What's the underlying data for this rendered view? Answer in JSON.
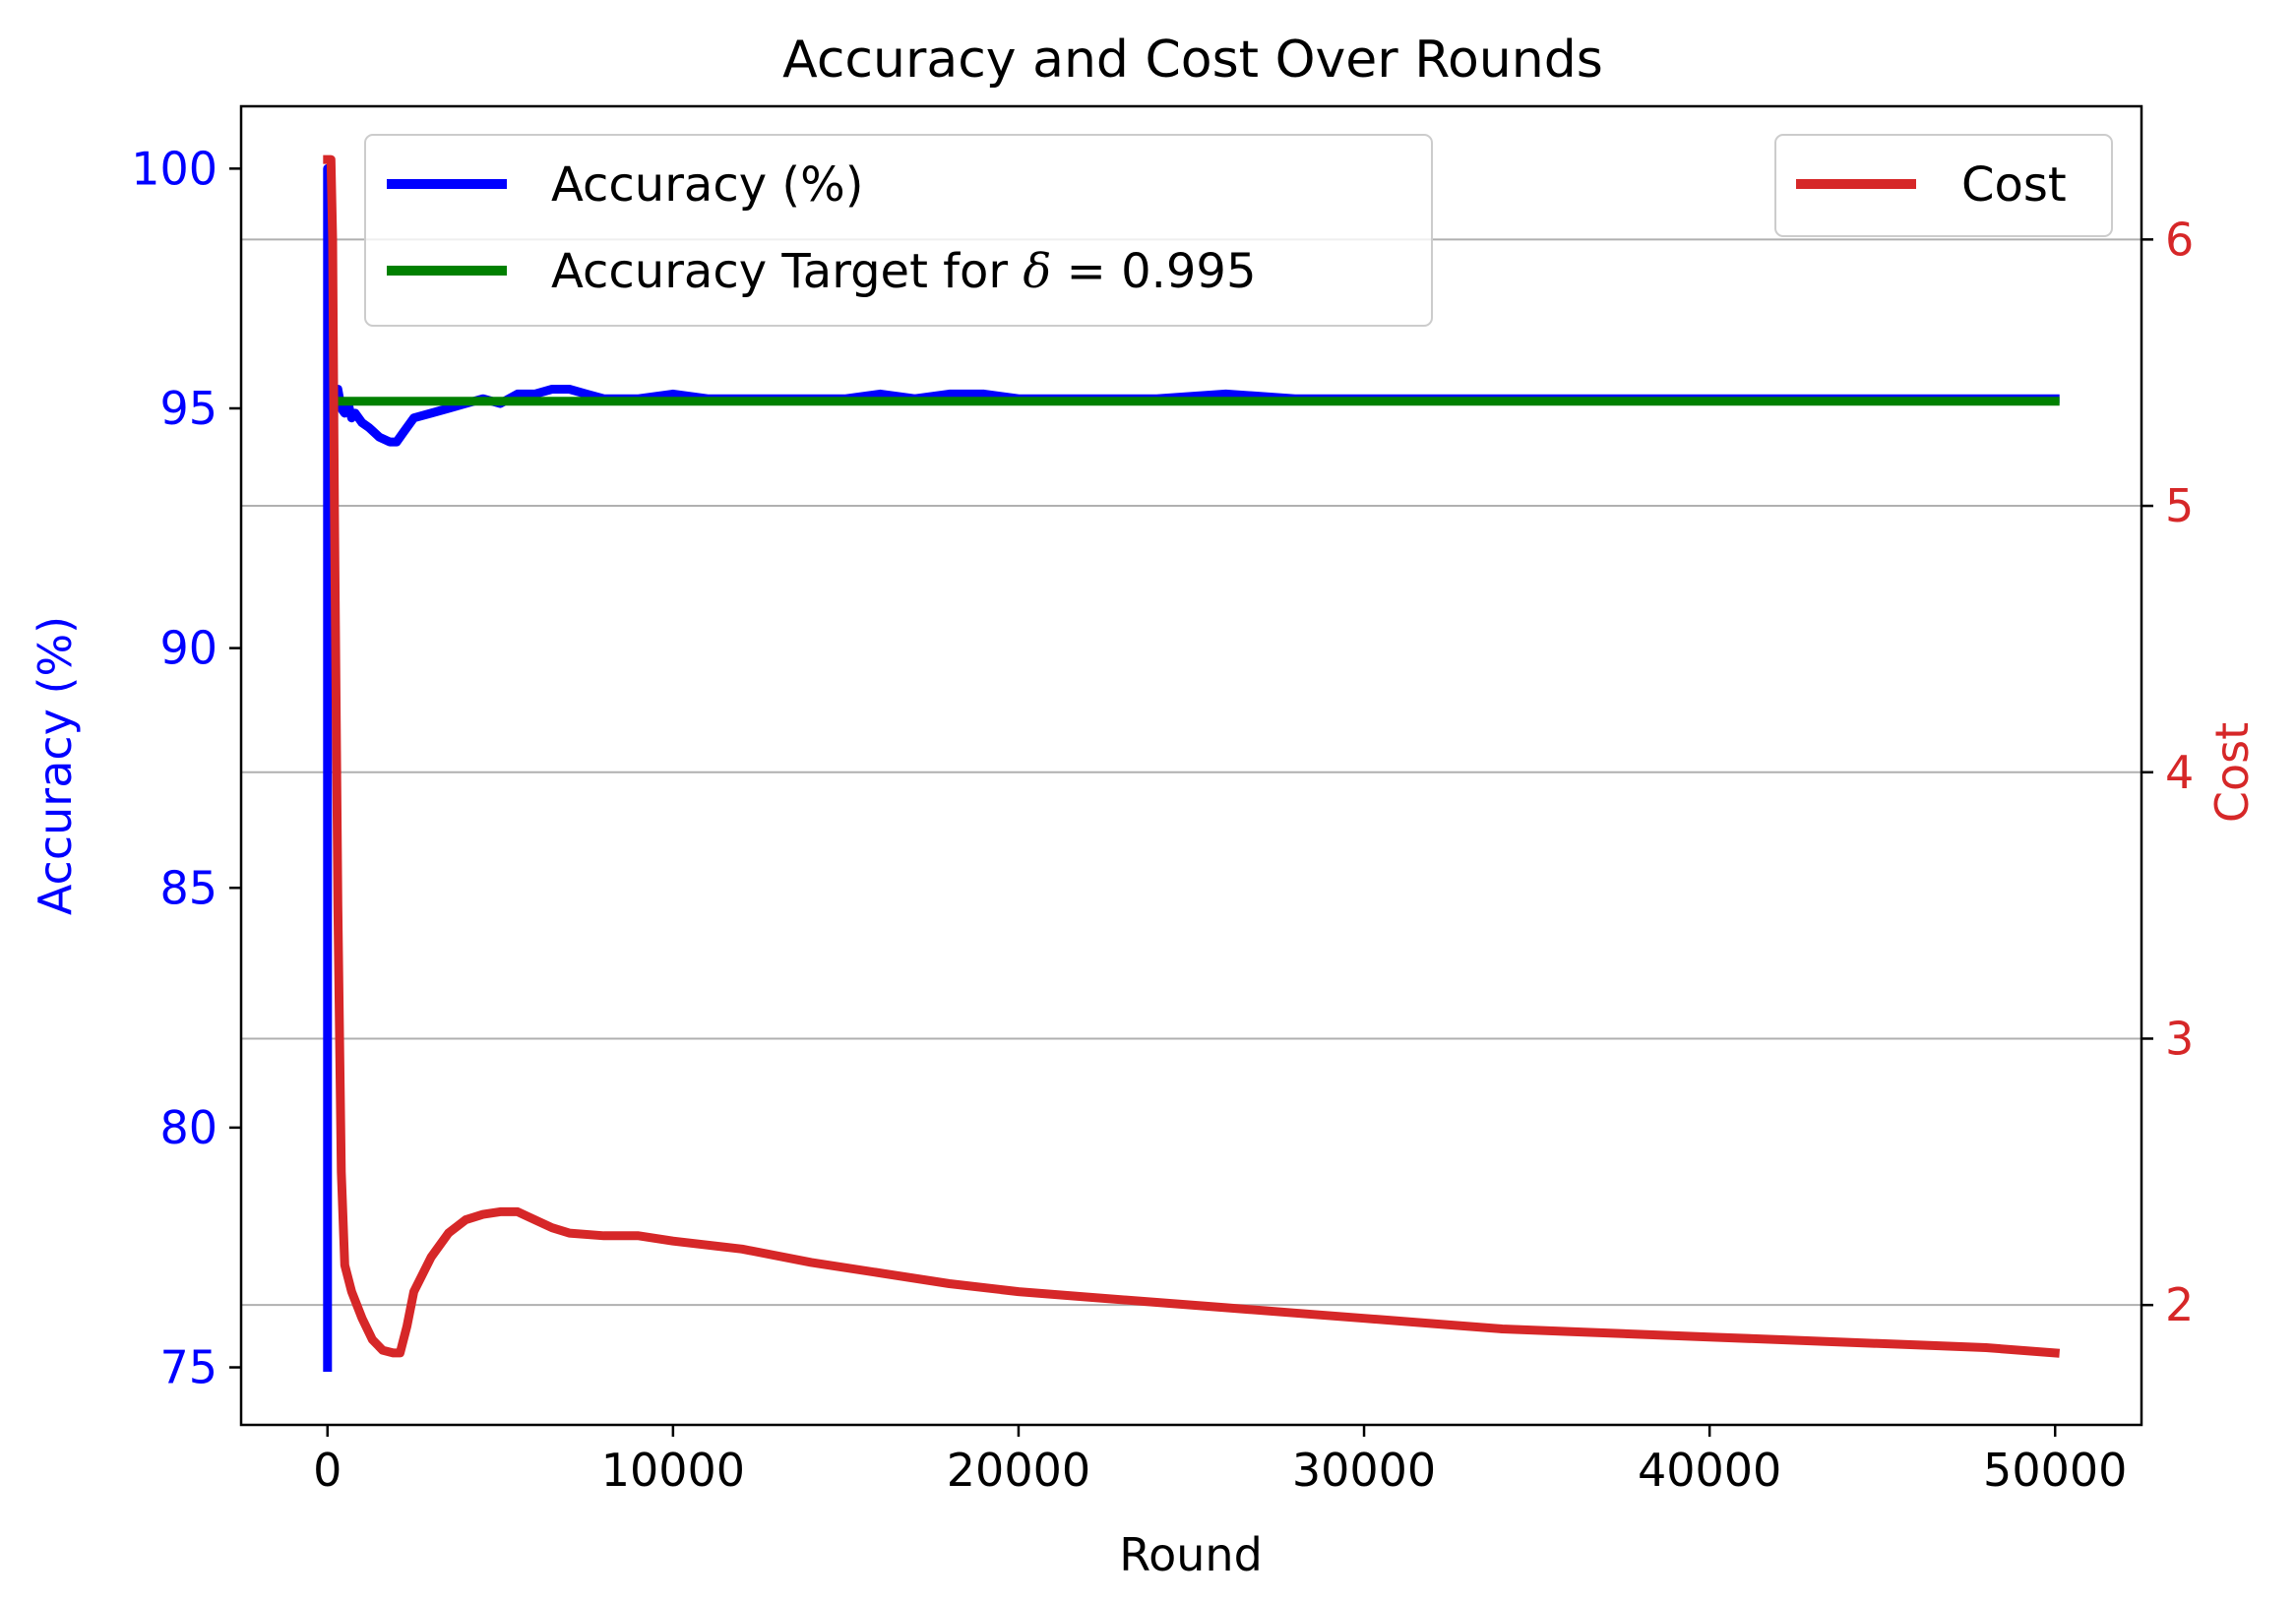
{
  "chart_data": {
    "type": "line",
    "title": "Accuracy and Cost Over Rounds",
    "xlabel": "Round",
    "ylabel_left": "Accuracy (%)",
    "ylabel_right": "Cost",
    "xlim": [
      -2500,
      52500
    ],
    "ylim_left": [
      73.8,
      101.3
    ],
    "ylim_right": [
      1.55,
      6.5
    ],
    "x_ticks": [
      0,
      10000,
      20000,
      30000,
      40000,
      50000
    ],
    "x_tick_labels": [
      "0",
      "10000",
      "20000",
      "30000",
      "40000",
      "50000"
    ],
    "y_ticks_left": [
      75,
      80,
      85,
      90,
      95,
      100
    ],
    "y_tick_labels_left": [
      "75",
      "80",
      "85",
      "90",
      "95",
      "100"
    ],
    "y_ticks_right": [
      2,
      3,
      4,
      5,
      6
    ],
    "y_tick_labels_right": [
      "2",
      "3",
      "4",
      "5",
      "6"
    ],
    "grid": "horizontal lines at right-axis ticks",
    "colors": {
      "left_axis": "#0000ff",
      "right_axis": "#d62728",
      "target": "#008000",
      "grid": "#b0b0b0",
      "text": "#000000"
    },
    "legend_left": {
      "placement": "upper-left",
      "entries": [
        {
          "label": "Accuracy (%)",
          "color": "#0000ff"
        },
        {
          "label_prefix": "Accuracy Target for ",
          "label_symbol": "δ",
          "label_suffix": " = 0.995",
          "color": "#008000"
        }
      ]
    },
    "legend_right": {
      "placement": "upper-right",
      "entries": [
        {
          "label": "Cost",
          "color": "#d62728"
        }
      ]
    },
    "series": [
      {
        "name": "Accuracy (%)",
        "axis": "left",
        "color": "#0000ff",
        "x": [
          0,
          0,
          20,
          60,
          100,
          150,
          200,
          300,
          400,
          500,
          600,
          700,
          800,
          1000,
          1200,
          1500,
          1800,
          2000,
          2200,
          2500,
          3000,
          3500,
          4000,
          4500,
          5000,
          5500,
          6000,
          6500,
          7000,
          7500,
          8000,
          9000,
          10000,
          11000,
          12000,
          13000,
          14000,
          15000,
          16000,
          17000,
          18000,
          19000,
          20000,
          22000,
          24000,
          26000,
          28000,
          30000,
          32000,
          34000,
          36000,
          38000,
          40000,
          42000,
          44000,
          46000,
          48000,
          50000
        ],
        "y": [
          75.0,
          100.0,
          92.0,
          93.5,
          94.0,
          94.8,
          95.2,
          95.4,
          95.0,
          94.9,
          95.1,
          94.8,
          94.9,
          94.7,
          94.6,
          94.4,
          94.3,
          94.3,
          94.5,
          94.8,
          94.9,
          95.0,
          95.1,
          95.2,
          95.1,
          95.3,
          95.3,
          95.4,
          95.4,
          95.3,
          95.2,
          95.2,
          95.3,
          95.2,
          95.2,
          95.2,
          95.2,
          95.2,
          95.3,
          95.2,
          95.3,
          95.3,
          95.2,
          95.2,
          95.2,
          95.3,
          95.2,
          95.2,
          95.2,
          95.2,
          95.2,
          95.2,
          95.2,
          95.2,
          95.2,
          95.2,
          95.2,
          95.2
        ]
      },
      {
        "name": "Accuracy Target for δ = 0.995",
        "axis": "left",
        "color": "#008000",
        "x": [
          200,
          50000
        ],
        "y": [
          95.15,
          95.15
        ]
      },
      {
        "name": "Cost",
        "axis": "right",
        "color": "#d62728",
        "x": [
          0,
          100,
          150,
          200,
          300,
          400,
          500,
          700,
          1000,
          1300,
          1600,
          1900,
          2100,
          2300,
          2500,
          3000,
          3500,
          4000,
          4500,
          5000,
          5500,
          6000,
          6500,
          7000,
          8000,
          9000,
          10000,
          12000,
          14000,
          16000,
          18000,
          20000,
          22000,
          24000,
          26000,
          28000,
          30000,
          32000,
          34000,
          36000,
          38000,
          40000,
          42000,
          44000,
          46000,
          48000,
          50000
        ],
        "y": [
          6.3,
          6.3,
          6.0,
          5.0,
          3.5,
          2.5,
          2.15,
          2.05,
          1.95,
          1.87,
          1.83,
          1.82,
          1.82,
          1.92,
          2.05,
          2.18,
          2.27,
          2.32,
          2.34,
          2.35,
          2.35,
          2.32,
          2.29,
          2.27,
          2.26,
          2.26,
          2.24,
          2.21,
          2.16,
          2.12,
          2.08,
          2.05,
          2.03,
          2.01,
          1.99,
          1.97,
          1.95,
          1.93,
          1.91,
          1.9,
          1.89,
          1.88,
          1.87,
          1.86,
          1.85,
          1.84,
          1.82
        ]
      }
    ]
  }
}
